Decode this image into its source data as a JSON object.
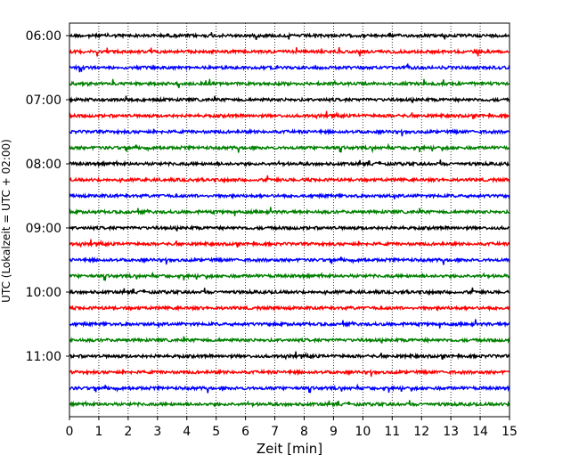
{
  "chart_data": {
    "type": "line",
    "title": "",
    "xlabel": "Zeit  [min]",
    "ylabel": "UTC (Lokalzeit = UTC + 02:00)",
    "xlim": [
      0,
      15
    ],
    "x_ticks": [
      "0",
      "1",
      "2",
      "3",
      "4",
      "5",
      "6",
      "7",
      "8",
      "9",
      "10",
      "11",
      "12",
      "13",
      "14",
      "15"
    ],
    "y_ticks": [
      "06:00",
      "07:00",
      "08:00",
      "09:00",
      "10:00",
      "11:00"
    ],
    "vertical_grid": "dotted",
    "trace_start": "06:00",
    "trace_interval_min": 15,
    "trace_count": 24,
    "trace_colors": [
      "#000000",
      "#ff0000",
      "#0000ff",
      "#008000"
    ],
    "series": [
      {
        "start": "06:00",
        "color": "#000000"
      },
      {
        "start": "06:15",
        "color": "#ff0000"
      },
      {
        "start": "06:30",
        "color": "#0000ff"
      },
      {
        "start": "06:45",
        "color": "#008000"
      },
      {
        "start": "07:00",
        "color": "#000000"
      },
      {
        "start": "07:15",
        "color": "#ff0000"
      },
      {
        "start": "07:30",
        "color": "#0000ff"
      },
      {
        "start": "07:45",
        "color": "#008000"
      },
      {
        "start": "08:00",
        "color": "#000000"
      },
      {
        "start": "08:15",
        "color": "#ff0000"
      },
      {
        "start": "08:30",
        "color": "#0000ff"
      },
      {
        "start": "08:45",
        "color": "#008000"
      },
      {
        "start": "09:00",
        "color": "#000000"
      },
      {
        "start": "09:15",
        "color": "#ff0000"
      },
      {
        "start": "09:30",
        "color": "#0000ff"
      },
      {
        "start": "09:45",
        "color": "#008000"
      },
      {
        "start": "10:00",
        "color": "#000000"
      },
      {
        "start": "10:15",
        "color": "#ff0000"
      },
      {
        "start": "10:30",
        "color": "#0000ff"
      },
      {
        "start": "10:45",
        "color": "#008000"
      },
      {
        "start": "11:00",
        "color": "#000000"
      },
      {
        "start": "11:15",
        "color": "#ff0000"
      },
      {
        "start": "11:30",
        "color": "#0000ff"
      },
      {
        "start": "11:45",
        "color": "#008000"
      }
    ]
  }
}
